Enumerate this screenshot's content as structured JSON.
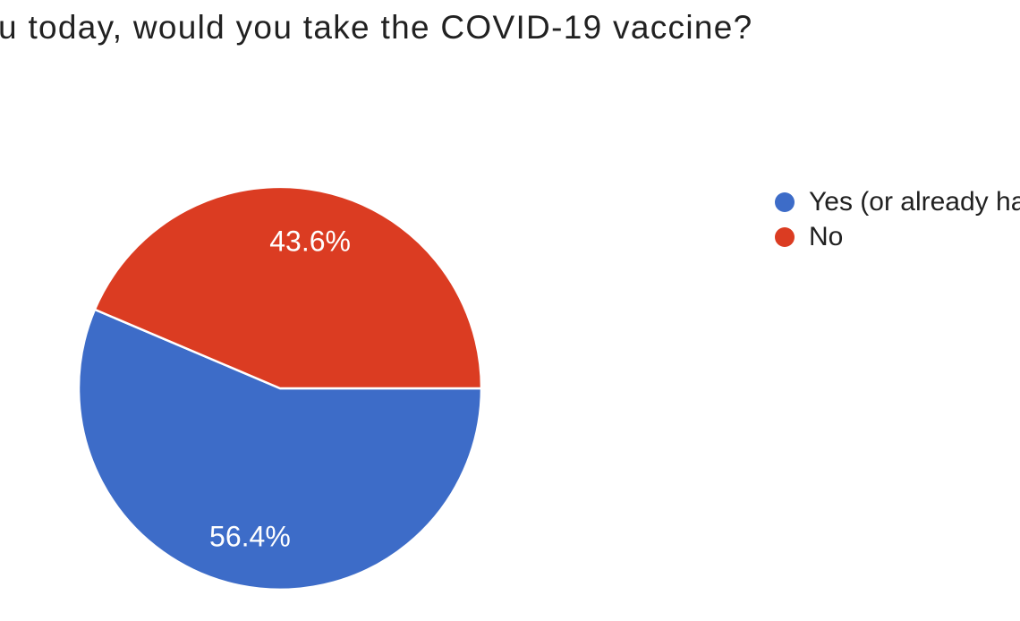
{
  "page": {
    "background": "#ffffff"
  },
  "title": {
    "text": "u today, would you take the COVID-19 vaccine?",
    "color": "#212121",
    "note": "question text cropped at left edge of screenshot"
  },
  "chart_data": {
    "type": "pie",
    "title": "u today, would you take the COVID-19 vaccine?",
    "slices": [
      {
        "label": "Yes (or already ha",
        "value": 56.4,
        "display": "56.4%",
        "color": "#3D6CC8"
      },
      {
        "label": "No",
        "value": 43.6,
        "display": "43.6%",
        "color": "#DB3C22"
      }
    ],
    "value_label_color": "#ffffff",
    "separator_color": "#ffffff",
    "legend_position": "right",
    "start_angle_deg": 0,
    "direction": "clockwise"
  }
}
